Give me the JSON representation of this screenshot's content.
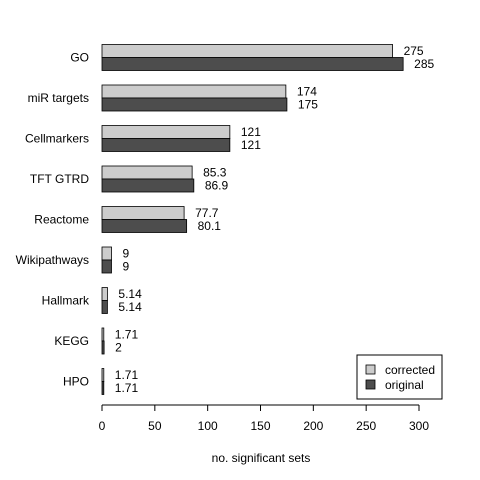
{
  "chart_data": {
    "type": "bar",
    "orientation": "horizontal",
    "categories": [
      "GO",
      "miR targets",
      "Cellmarkers",
      "TFT GTRD",
      "Reactome",
      "Wikipathways",
      "Hallmark",
      "KEGG",
      "HPO"
    ],
    "series": [
      {
        "name": "corrected",
        "values": [
          275,
          174,
          121,
          85.3,
          77.7,
          9,
          5.14,
          1.71,
          1.71
        ],
        "labels": [
          "275",
          "174",
          "121",
          "85.3",
          "77.7",
          "9",
          "5.14",
          "1.71",
          "1.71"
        ],
        "color": "#cccccc"
      },
      {
        "name": "original",
        "values": [
          285,
          175,
          121,
          86.9,
          80.1,
          9,
          5.14,
          2,
          1.71
        ],
        "labels": [
          "285",
          "175",
          "121",
          "86.9",
          "80.1",
          "9",
          "5.14",
          "2",
          "1.71"
        ],
        "color": "#4d4d4d"
      }
    ],
    "xlabel": "no. significant sets",
    "ylabel": "",
    "xlim": [
      0,
      300
    ],
    "xticks": [
      0,
      50,
      100,
      150,
      200,
      250,
      300
    ],
    "grid": false,
    "legend": "bottom-right"
  }
}
